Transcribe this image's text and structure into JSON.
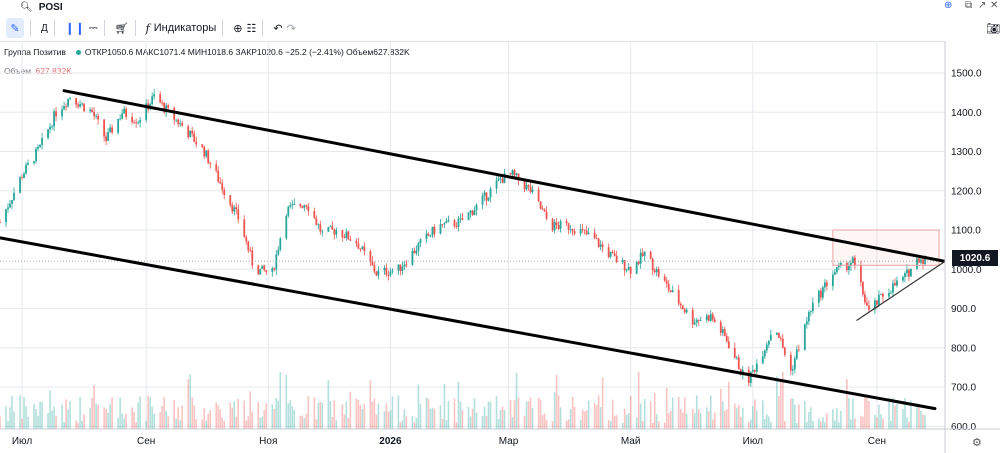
{
  "window": {
    "search_value": "POSI"
  },
  "toolbar": {
    "indicators_label": "Индикаторы"
  },
  "legend": {
    "name": "Группа Позитив",
    "ohlc": "ОТКР1050.6  МАКС1071.4  МИН1018.6  ЗАКР1020.6  −25.2 (−2.41%)  Объем627.832K",
    "volume_label": "Объем",
    "volume_value": "627.832K"
  },
  "last_price": "1020.6",
  "colors": {
    "up": "#26a69a",
    "down": "#ef5350",
    "accent": "#2962ff",
    "channel": "#000000"
  },
  "chart_data": {
    "type": "candlestick",
    "symbol": "POSI",
    "x_tick_labels": [
      "Июл",
      "Сен",
      "Ноя",
      "2026",
      "Мар",
      "Май",
      "Июл",
      "Сен"
    ],
    "y_ticks": [
      600,
      700,
      800,
      900,
      1000,
      1100,
      1200,
      1300,
      1400,
      1500
    ],
    "y_tick_labels": [
      "600.0",
      "700.0",
      "800.0",
      "900.0",
      "1000.0",
      "1100.0",
      "1200.0",
      "1300.0",
      "1400.0",
      "1500.0"
    ],
    "ylim": [
      580,
      1520
    ],
    "grid": true,
    "ohlc_last": {
      "open": 1050.6,
      "high": 1071.4,
      "low": 1018.6,
      "close": 1020.6,
      "change": -25.2,
      "change_pct": -2.41,
      "volume": "627.832K"
    },
    "close_path": [
      {
        "x": "2025-06-20",
        "y": 1120
      },
      {
        "x": "2025-07-01",
        "y": 1240
      },
      {
        "x": "2025-07-10",
        "y": 1310
      },
      {
        "x": "2025-07-18",
        "y": 1400
      },
      {
        "x": "2025-07-25",
        "y": 1440
      },
      {
        "x": "2025-08-05",
        "y": 1400
      },
      {
        "x": "2025-08-12",
        "y": 1330
      },
      {
        "x": "2025-08-20",
        "y": 1400
      },
      {
        "x": "2025-08-28",
        "y": 1380
      },
      {
        "x": "2025-09-05",
        "y": 1440
      },
      {
        "x": "2025-09-12",
        "y": 1400
      },
      {
        "x": "2025-09-20",
        "y": 1360
      },
      {
        "x": "2025-09-30",
        "y": 1300
      },
      {
        "x": "2025-10-10",
        "y": 1200
      },
      {
        "x": "2025-10-18",
        "y": 1120
      },
      {
        "x": "2025-10-25",
        "y": 1000
      },
      {
        "x": "2025-11-03",
        "y": 990
      },
      {
        "x": "2025-11-10",
        "y": 1150
      },
      {
        "x": "2025-11-20",
        "y": 1170
      },
      {
        "x": "2025-11-28",
        "y": 1090
      },
      {
        "x": "2025-12-05",
        "y": 1100
      },
      {
        "x": "2025-12-15",
        "y": 1070
      },
      {
        "x": "2025-12-25",
        "y": 990
      },
      {
        "x": "2026-01-05",
        "y": 1000
      },
      {
        "x": "2026-01-15",
        "y": 1060
      },
      {
        "x": "2026-01-25",
        "y": 1110
      },
      {
        "x": "2026-02-05",
        "y": 1120
      },
      {
        "x": "2026-02-15",
        "y": 1170
      },
      {
        "x": "2026-02-25",
        "y": 1230
      },
      {
        "x": "2026-03-03",
        "y": 1240
      },
      {
        "x": "2026-03-12",
        "y": 1200
      },
      {
        "x": "2026-03-22",
        "y": 1110
      },
      {
        "x": "2026-04-01",
        "y": 1110
      },
      {
        "x": "2026-04-12",
        "y": 1080
      },
      {
        "x": "2026-04-22",
        "y": 1030
      },
      {
        "x": "2026-05-01",
        "y": 1000
      },
      {
        "x": "2026-05-08",
        "y": 1040
      },
      {
        "x": "2026-05-20",
        "y": 950
      },
      {
        "x": "2026-06-01",
        "y": 870
      },
      {
        "x": "2026-06-10",
        "y": 880
      },
      {
        "x": "2026-06-18",
        "y": 820
      },
      {
        "x": "2026-06-28",
        "y": 710
      },
      {
        "x": "2026-07-05",
        "y": 780
      },
      {
        "x": "2026-07-12",
        "y": 860
      },
      {
        "x": "2026-07-20",
        "y": 740
      },
      {
        "x": "2026-07-30",
        "y": 900
      },
      {
        "x": "2026-08-10",
        "y": 990
      },
      {
        "x": "2026-08-20",
        "y": 1020
      },
      {
        "x": "2026-08-28",
        "y": 890
      },
      {
        "x": "2026-09-05",
        "y": 940
      },
      {
        "x": "2026-09-15",
        "y": 980
      },
      {
        "x": "2026-09-22",
        "y": 1030
      },
      {
        "x": "2026-09-26",
        "y": 1020.6
      }
    ],
    "trendlines": [
      {
        "name": "upper-channel",
        "from": {
          "x": "2025-07-22",
          "y": 1455
        },
        "to": {
          "x": "2026-10-05",
          "y": 1020
        }
      },
      {
        "name": "lower-channel",
        "from": {
          "x": "2025-06-20",
          "y": 1080
        },
        "to": {
          "x": "2026-09-30",
          "y": 645
        }
      },
      {
        "name": "support-line",
        "from": {
          "x": "2026-08-22",
          "y": 870
        },
        "to": {
          "x": "2026-10-05",
          "y": 1020
        }
      }
    ],
    "rectangle": {
      "x1": "2026-08-10",
      "x2": "2026-10-02",
      "y1": 1100,
      "y2": 1010
    },
    "hline_last_close": 1020.6
  }
}
